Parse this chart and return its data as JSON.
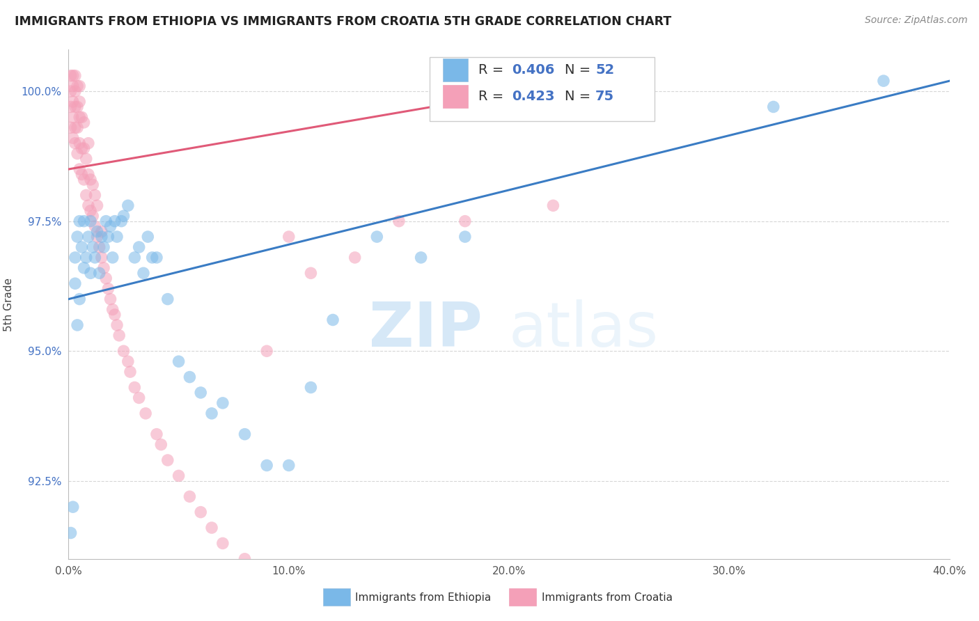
{
  "title": "IMMIGRANTS FROM ETHIOPIA VS IMMIGRANTS FROM CROATIA 5TH GRADE CORRELATION CHART",
  "source": "Source: ZipAtlas.com",
  "xlabel_bottom": "Immigrants from Ethiopia",
  "xlabel_bottom2": "Immigrants from Croatia",
  "ylabel": "5th Grade",
  "watermark_zip": "ZIP",
  "watermark_atlas": "atlas",
  "xlim": [
    0.0,
    0.4
  ],
  "ylim": [
    0.91,
    1.008
  ],
  "xticks": [
    0.0,
    0.1,
    0.2,
    0.3,
    0.4
  ],
  "xtick_labels": [
    "0.0%",
    "10.0%",
    "20.0%",
    "30.0%",
    "40.0%"
  ],
  "yticks": [
    0.925,
    0.95,
    0.975,
    1.0
  ],
  "ytick_labels": [
    "92.5%",
    "95.0%",
    "97.5%",
    "100.0%"
  ],
  "legend_R1": "R = 0.406",
  "legend_N1": "N = 52",
  "legend_R2": "R = 0.423",
  "legend_N2": "N = 75",
  "blue_color": "#7ab8e8",
  "pink_color": "#f4a0b8",
  "blue_line_color": "#3a7cc4",
  "pink_line_color": "#e05a78",
  "blue_scatter_x": [
    0.001,
    0.002,
    0.003,
    0.003,
    0.004,
    0.004,
    0.005,
    0.005,
    0.006,
    0.007,
    0.007,
    0.008,
    0.009,
    0.01,
    0.01,
    0.011,
    0.012,
    0.013,
    0.014,
    0.015,
    0.016,
    0.017,
    0.018,
    0.019,
    0.02,
    0.021,
    0.022,
    0.024,
    0.025,
    0.027,
    0.03,
    0.032,
    0.034,
    0.036,
    0.038,
    0.04,
    0.045,
    0.05,
    0.055,
    0.06,
    0.065,
    0.07,
    0.08,
    0.09,
    0.1,
    0.11,
    0.12,
    0.14,
    0.16,
    0.18,
    0.32,
    0.37
  ],
  "blue_scatter_y": [
    0.915,
    0.92,
    0.963,
    0.968,
    0.955,
    0.972,
    0.96,
    0.975,
    0.97,
    0.966,
    0.975,
    0.968,
    0.972,
    0.965,
    0.975,
    0.97,
    0.968,
    0.973,
    0.965,
    0.972,
    0.97,
    0.975,
    0.972,
    0.974,
    0.968,
    0.975,
    0.972,
    0.975,
    0.976,
    0.978,
    0.968,
    0.97,
    0.965,
    0.972,
    0.968,
    0.968,
    0.96,
    0.948,
    0.945,
    0.942,
    0.938,
    0.94,
    0.934,
    0.928,
    0.928,
    0.943,
    0.956,
    0.972,
    0.968,
    0.972,
    0.997,
    1.002
  ],
  "pink_scatter_x": [
    0.001,
    0.001,
    0.001,
    0.001,
    0.002,
    0.002,
    0.002,
    0.002,
    0.002,
    0.003,
    0.003,
    0.003,
    0.003,
    0.003,
    0.004,
    0.004,
    0.004,
    0.004,
    0.005,
    0.005,
    0.005,
    0.005,
    0.005,
    0.006,
    0.006,
    0.006,
    0.007,
    0.007,
    0.007,
    0.008,
    0.008,
    0.009,
    0.009,
    0.009,
    0.01,
    0.01,
    0.011,
    0.011,
    0.012,
    0.012,
    0.013,
    0.013,
    0.014,
    0.015,
    0.015,
    0.016,
    0.017,
    0.018,
    0.019,
    0.02,
    0.021,
    0.022,
    0.023,
    0.025,
    0.027,
    0.028,
    0.03,
    0.032,
    0.035,
    0.04,
    0.042,
    0.045,
    0.05,
    0.055,
    0.06,
    0.065,
    0.07,
    0.08,
    0.09,
    0.1,
    0.11,
    0.13,
    0.15,
    0.18,
    0.22
  ],
  "pink_scatter_y": [
    0.993,
    0.997,
    1.0,
    1.003,
    0.991,
    0.995,
    0.998,
    1.001,
    1.003,
    0.99,
    0.993,
    0.997,
    1.0,
    1.003,
    0.988,
    0.993,
    0.997,
    1.001,
    0.985,
    0.99,
    0.995,
    0.998,
    1.001,
    0.984,
    0.989,
    0.995,
    0.983,
    0.989,
    0.994,
    0.98,
    0.987,
    0.978,
    0.984,
    0.99,
    0.977,
    0.983,
    0.976,
    0.982,
    0.974,
    0.98,
    0.972,
    0.978,
    0.97,
    0.968,
    0.973,
    0.966,
    0.964,
    0.962,
    0.96,
    0.958,
    0.957,
    0.955,
    0.953,
    0.95,
    0.948,
    0.946,
    0.943,
    0.941,
    0.938,
    0.934,
    0.932,
    0.929,
    0.926,
    0.922,
    0.919,
    0.916,
    0.913,
    0.91,
    0.95,
    0.972,
    0.965,
    0.968,
    0.975,
    0.975,
    0.978
  ]
}
